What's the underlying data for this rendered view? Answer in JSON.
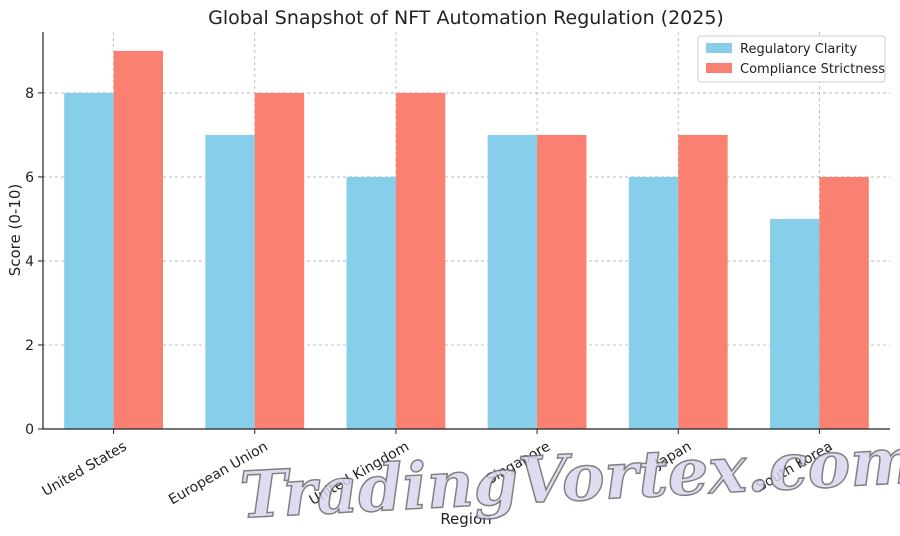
{
  "chart_data": {
    "type": "bar",
    "title": "Global Snapshot of NFT Automation Regulation (2025)",
    "xlabel": "Region",
    "ylabel": "Score (0-10)",
    "categories": [
      "United States",
      "European Union",
      "United Kingdom",
      "Singapore",
      "Japan",
      "South Korea"
    ],
    "series": [
      {
        "name": "Regulatory Clarity",
        "values": [
          8,
          7,
          6,
          7,
          6,
          5
        ],
        "color": "#87CEEB"
      },
      {
        "name": "Compliance Strictness",
        "values": [
          9,
          8,
          8,
          7,
          7,
          6
        ],
        "color": "#FA8072"
      }
    ],
    "ylim": [
      0,
      9.45
    ],
    "yticks": [
      0,
      2,
      4,
      6,
      8
    ],
    "grid": true,
    "legend_position": "top-right"
  },
  "watermark": {
    "text": "TradingVortex.com"
  }
}
